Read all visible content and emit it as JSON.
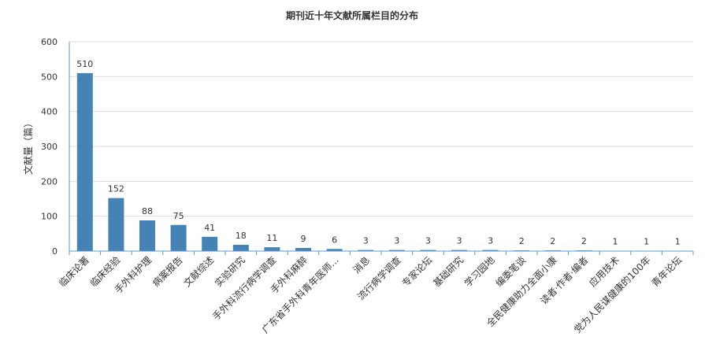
{
  "chart_data": {
    "type": "bar",
    "title": "期刊近十年文献所属栏目的分布",
    "xlabel": "",
    "ylabel": "文献量（篇）",
    "ylim": [
      0,
      600
    ],
    "yticks": [
      0,
      100,
      200,
      300,
      400,
      500,
      600
    ],
    "grid": true,
    "categories": [
      "临床论著",
      "临床经验",
      "手外科护理",
      "病案报告",
      "文献综述",
      "实验研究",
      "手外科流行病学调查",
      "手外科麻醉",
      "广东省手外科青年医师...",
      "消息",
      "流行病学调查",
      "专家论坛",
      "基础研究",
      "学习园地",
      "编委笔谈",
      "全民健康助力全面小康",
      "读者·作者·编者",
      "应用技术",
      "党为人民谋健康的100年",
      "青年论坛"
    ],
    "values": [
      510,
      152,
      88,
      75,
      41,
      18,
      11,
      9,
      6,
      3,
      3,
      3,
      3,
      3,
      2,
      2,
      2,
      1,
      1,
      1
    ],
    "colors": {
      "bar": "#4682b4",
      "axis": "#5b9bd5",
      "grid": "#dddddd",
      "text": "#333333"
    }
  }
}
